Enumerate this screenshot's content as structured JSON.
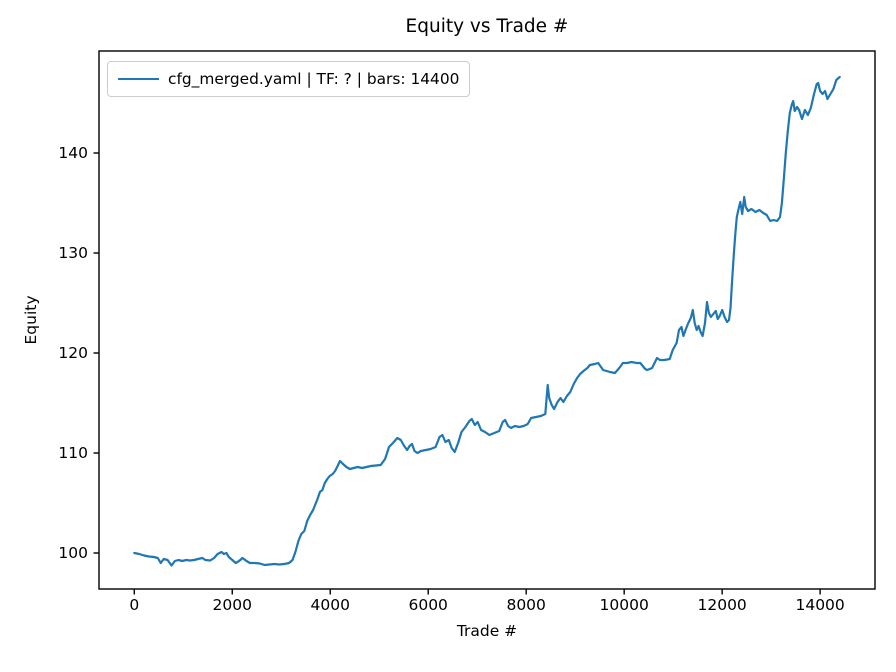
{
  "window": {
    "background": "#ffffff"
  },
  "chart_data": {
    "type": "line",
    "title": "Equity vs Trade #",
    "xlabel": "Trade #",
    "ylabel": "Equity",
    "legend_position": "upper left",
    "grid": false,
    "x_ticks": [
      0,
      2000,
      4000,
      6000,
      8000,
      10000,
      12000,
      14000
    ],
    "y_ticks": [
      100,
      110,
      120,
      130,
      140
    ],
    "xlim": [
      -720,
      15120
    ],
    "ylim": [
      96.4,
      150.2
    ],
    "colors": {
      "line": "#1f77b4",
      "axis": "#000000",
      "text": "#000000",
      "legend_border": "#cccccc",
      "background": "#ffffff"
    },
    "series": [
      {
        "name": "cfg_merged.yaml | TF: ? | bars: 14400",
        "color": "#1f77b4",
        "points": [
          [
            0,
            100.0
          ],
          [
            100,
            99.9
          ],
          [
            200,
            99.75
          ],
          [
            300,
            99.65
          ],
          [
            400,
            99.6
          ],
          [
            480,
            99.5
          ],
          [
            540,
            99.0
          ],
          [
            600,
            99.4
          ],
          [
            680,
            99.3
          ],
          [
            760,
            98.75
          ],
          [
            830,
            99.2
          ],
          [
            900,
            99.3
          ],
          [
            980,
            99.2
          ],
          [
            1060,
            99.3
          ],
          [
            1140,
            99.25
          ],
          [
            1220,
            99.3
          ],
          [
            1300,
            99.4
          ],
          [
            1390,
            99.5
          ],
          [
            1450,
            99.3
          ],
          [
            1550,
            99.25
          ],
          [
            1630,
            99.5
          ],
          [
            1700,
            99.9
          ],
          [
            1780,
            100.1
          ],
          [
            1830,
            99.9
          ],
          [
            1880,
            100.0
          ],
          [
            1930,
            99.6
          ],
          [
            2000,
            99.3
          ],
          [
            2070,
            99.0
          ],
          [
            2140,
            99.2
          ],
          [
            2210,
            99.5
          ],
          [
            2290,
            99.2
          ],
          [
            2360,
            99.0
          ],
          [
            2460,
            99.0
          ],
          [
            2560,
            98.95
          ],
          [
            2660,
            98.8
          ],
          [
            2760,
            98.85
          ],
          [
            2860,
            98.9
          ],
          [
            2960,
            98.85
          ],
          [
            3060,
            98.9
          ],
          [
            3160,
            99.0
          ],
          [
            3230,
            99.3
          ],
          [
            3290,
            100.1
          ],
          [
            3350,
            101.2
          ],
          [
            3410,
            101.9
          ],
          [
            3470,
            102.2
          ],
          [
            3530,
            103.2
          ],
          [
            3590,
            103.8
          ],
          [
            3650,
            104.3
          ],
          [
            3700,
            104.9
          ],
          [
            3740,
            105.4
          ],
          [
            3790,
            106.1
          ],
          [
            3840,
            106.3
          ],
          [
            3890,
            107.0
          ],
          [
            3940,
            107.4
          ],
          [
            3990,
            107.7
          ],
          [
            4050,
            107.9
          ],
          [
            4100,
            108.2
          ],
          [
            4150,
            108.7
          ],
          [
            4200,
            109.2
          ],
          [
            4260,
            108.9
          ],
          [
            4330,
            108.6
          ],
          [
            4400,
            108.4
          ],
          [
            4480,
            108.5
          ],
          [
            4560,
            108.6
          ],
          [
            4650,
            108.5
          ],
          [
            4740,
            108.6
          ],
          [
            4830,
            108.7
          ],
          [
            4930,
            108.75
          ],
          [
            5030,
            108.8
          ],
          [
            5120,
            109.4
          ],
          [
            5200,
            110.6
          ],
          [
            5280,
            111.0
          ],
          [
            5370,
            111.5
          ],
          [
            5440,
            111.3
          ],
          [
            5510,
            110.7
          ],
          [
            5570,
            110.3
          ],
          [
            5620,
            110.7
          ],
          [
            5670,
            110.9
          ],
          [
            5720,
            110.2
          ],
          [
            5780,
            110.0
          ],
          [
            5850,
            110.2
          ],
          [
            5950,
            110.3
          ],
          [
            6050,
            110.4
          ],
          [
            6150,
            110.6
          ],
          [
            6230,
            111.6
          ],
          [
            6290,
            111.8
          ],
          [
            6350,
            111.1
          ],
          [
            6420,
            111.3
          ],
          [
            6480,
            110.5
          ],
          [
            6540,
            110.1
          ],
          [
            6610,
            111.0
          ],
          [
            6680,
            112.1
          ],
          [
            6760,
            112.6
          ],
          [
            6840,
            113.2
          ],
          [
            6890,
            113.4
          ],
          [
            6950,
            112.8
          ],
          [
            7010,
            113.1
          ],
          [
            7080,
            112.3
          ],
          [
            7160,
            112.1
          ],
          [
            7250,
            111.8
          ],
          [
            7350,
            112.0
          ],
          [
            7450,
            112.2
          ],
          [
            7520,
            113.1
          ],
          [
            7570,
            113.3
          ],
          [
            7630,
            112.7
          ],
          [
            7690,
            112.5
          ],
          [
            7770,
            112.7
          ],
          [
            7860,
            112.6
          ],
          [
            7950,
            112.7
          ],
          [
            8030,
            112.9
          ],
          [
            8100,
            113.5
          ],
          [
            8200,
            113.6
          ],
          [
            8300,
            113.7
          ],
          [
            8390,
            113.9
          ],
          [
            8440,
            116.8
          ],
          [
            8470,
            115.5
          ],
          [
            8520,
            114.8
          ],
          [
            8570,
            114.4
          ],
          [
            8640,
            115.1
          ],
          [
            8700,
            115.5
          ],
          [
            8760,
            115.1
          ],
          [
            8830,
            115.7
          ],
          [
            8900,
            116.1
          ],
          [
            8970,
            116.9
          ],
          [
            9040,
            117.5
          ],
          [
            9100,
            117.9
          ],
          [
            9170,
            118.2
          ],
          [
            9250,
            118.5
          ],
          [
            9300,
            118.8
          ],
          [
            9400,
            118.9
          ],
          [
            9470,
            119.0
          ],
          [
            9570,
            118.3
          ],
          [
            9640,
            118.2
          ],
          [
            9710,
            118.1
          ],
          [
            9810,
            118.0
          ],
          [
            9900,
            118.5
          ],
          [
            9975,
            119.0
          ],
          [
            10060,
            119.0
          ],
          [
            10150,
            119.1
          ],
          [
            10250,
            119.0
          ],
          [
            10330,
            119.0
          ],
          [
            10430,
            118.4
          ],
          [
            10470,
            118.3
          ],
          [
            10570,
            118.5
          ],
          [
            10670,
            119.5
          ],
          [
            10730,
            119.3
          ],
          [
            10820,
            119.3
          ],
          [
            10930,
            119.4
          ],
          [
            10990,
            120.3
          ],
          [
            11070,
            121.0
          ],
          [
            11120,
            122.3
          ],
          [
            11170,
            122.6
          ],
          [
            11210,
            121.7
          ],
          [
            11260,
            122.4
          ],
          [
            11310,
            123.0
          ],
          [
            11360,
            123.5
          ],
          [
            11400,
            124.3
          ],
          [
            11440,
            123.0
          ],
          [
            11480,
            122.3
          ],
          [
            11520,
            122.7
          ],
          [
            11560,
            122.1
          ],
          [
            11600,
            121.7
          ],
          [
            11650,
            123.0
          ],
          [
            11690,
            125.1
          ],
          [
            11730,
            124.0
          ],
          [
            11770,
            123.6
          ],
          [
            11820,
            123.9
          ],
          [
            11870,
            124.2
          ],
          [
            11910,
            123.4
          ],
          [
            11950,
            123.7
          ],
          [
            12000,
            124.3
          ],
          [
            12050,
            123.6
          ],
          [
            12100,
            123.1
          ],
          [
            12140,
            123.3
          ],
          [
            12170,
            124.5
          ],
          [
            12190,
            126.2
          ],
          [
            12210,
            127.7
          ],
          [
            12240,
            130.0
          ],
          [
            12270,
            132.0
          ],
          [
            12300,
            133.6
          ],
          [
            12340,
            134.5
          ],
          [
            12370,
            135.1
          ],
          [
            12410,
            133.9
          ],
          [
            12450,
            135.6
          ],
          [
            12480,
            134.6
          ],
          [
            12530,
            134.2
          ],
          [
            12600,
            134.4
          ],
          [
            12680,
            134.1
          ],
          [
            12760,
            134.3
          ],
          [
            12840,
            134.0
          ],
          [
            12910,
            133.8
          ],
          [
            12980,
            133.2
          ],
          [
            13050,
            133.3
          ],
          [
            13120,
            133.2
          ],
          [
            13180,
            133.6
          ],
          [
            13220,
            135.0
          ],
          [
            13260,
            137.5
          ],
          [
            13300,
            140.0
          ],
          [
            13340,
            142.2
          ],
          [
            13380,
            144.0
          ],
          [
            13420,
            144.8
          ],
          [
            13450,
            145.2
          ],
          [
            13480,
            144.2
          ],
          [
            13530,
            144.6
          ],
          [
            13570,
            144.3
          ],
          [
            13630,
            143.4
          ],
          [
            13690,
            144.3
          ],
          [
            13750,
            143.8
          ],
          [
            13810,
            144.5
          ],
          [
            13870,
            145.8
          ],
          [
            13930,
            146.9
          ],
          [
            13960,
            147.0
          ],
          [
            14000,
            146.2
          ],
          [
            14050,
            145.9
          ],
          [
            14100,
            146.2
          ],
          [
            14150,
            145.4
          ],
          [
            14210,
            145.9
          ],
          [
            14270,
            146.4
          ],
          [
            14330,
            147.3
          ],
          [
            14400,
            147.6
          ]
        ]
      }
    ]
  }
}
